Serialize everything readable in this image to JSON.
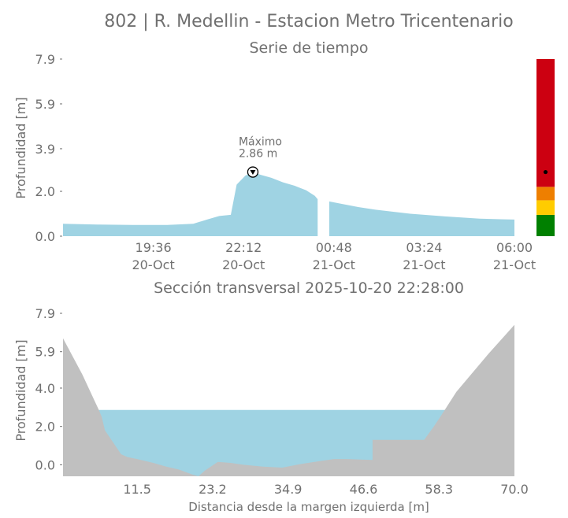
{
  "figure_title": "802 | R. Medellin - Estacion Metro Tricentenario",
  "chart_data": [
    {
      "type": "area",
      "title": "Serie de tiempo",
      "xlabel": "",
      "ylabel": "Profundidad [m]",
      "ylim": [
        0,
        7.9
      ],
      "yticks": [
        "0.0",
        "2.0",
        "3.9",
        "5.9",
        "7.9"
      ],
      "xticks": [
        {
          "time": "19:36",
          "date": "20-Oct"
        },
        {
          "time": "22:12",
          "date": "20-Oct"
        },
        {
          "time": "00:48",
          "date": "21-Oct"
        },
        {
          "time": "03:24",
          "date": "21-Oct"
        },
        {
          "time": "06:00",
          "date": "21-Oct"
        }
      ],
      "series": [
        {
          "color": "#9fd3e3",
          "points": [
            [
              "2025-10-20 17:00",
              0.55
            ],
            [
              "2025-10-20 18:00",
              0.52
            ],
            [
              "2025-10-20 19:00",
              0.5
            ],
            [
              "2025-10-20 20:00",
              0.5
            ],
            [
              "2025-10-20 20:45",
              0.55
            ],
            [
              "2025-10-20 21:10",
              0.75
            ],
            [
              "2025-10-20 21:30",
              0.9
            ],
            [
              "2025-10-20 21:50",
              0.95
            ],
            [
              "2025-10-20 22:00",
              2.3
            ],
            [
              "2025-10-20 22:15",
              2.7
            ],
            [
              "2025-10-20 22:28",
              2.86
            ],
            [
              "2025-10-20 22:40",
              2.75
            ],
            [
              "2025-10-20 23:00",
              2.6
            ],
            [
              "2025-10-20 23:20",
              2.4
            ],
            [
              "2025-10-20 23:40",
              2.25
            ],
            [
              "2025-10-21 00:00",
              2.05
            ],
            [
              "2025-10-21 00:15",
              1.8
            ],
            [
              "2025-10-21 00:20",
              1.65
            ],
            [
              "2025-10-21 00:30",
              null
            ],
            [
              "2025-10-21 00:40",
              1.55
            ],
            [
              "2025-10-21 01:00",
              1.45
            ],
            [
              "2025-10-21 01:30",
              1.3
            ],
            [
              "2025-10-21 02:00",
              1.18
            ],
            [
              "2025-10-21 03:00",
              1.0
            ],
            [
              "2025-10-21 04:00",
              0.88
            ],
            [
              "2025-10-21 05:00",
              0.78
            ],
            [
              "2025-10-21 06:00",
              0.74
            ]
          ]
        }
      ],
      "max_annotation": {
        "label": "Máximo",
        "value_text": "2.86 m",
        "time": "2025-10-20 22:28",
        "value": 2.86
      },
      "alert_bar": {
        "current_level": 2.86,
        "bands": [
          {
            "from": 0.0,
            "to": 0.95,
            "color": "#008000"
          },
          {
            "from": 0.95,
            "to": 1.6,
            "color": "#ffcc00"
          },
          {
            "from": 1.6,
            "to": 2.2,
            "color": "#ee7f00"
          },
          {
            "from": 2.2,
            "to": 7.9,
            "color": "#cc0011"
          }
        ]
      }
    },
    {
      "type": "area",
      "title": "Sección transversal 2025-10-20 22:28:00",
      "xlabel": "Distancia desde la margen izquierda [m]",
      "ylabel": "Profundidad [m]",
      "xlim": [
        0,
        70.0
      ],
      "ylim": [
        -0.6,
        7.9
      ],
      "xticks": [
        "11.5",
        "23.2",
        "34.9",
        "46.6",
        "58.3",
        "70.0"
      ],
      "yticks": [
        "0.0",
        "2.0",
        "4.0",
        "5.9",
        "7.9"
      ],
      "water_level": 2.86,
      "water_color": "#9fd3e3",
      "bed_color": "#c0c0c0",
      "bed_profile": [
        [
          0,
          6.6
        ],
        [
          3,
          4.7
        ],
        [
          5.5,
          2.9
        ],
        [
          6,
          2.5
        ],
        [
          6.5,
          1.8
        ],
        [
          7.5,
          1.3
        ],
        [
          8.5,
          0.8
        ],
        [
          9,
          0.55
        ],
        [
          10,
          0.4
        ],
        [
          11.5,
          0.3
        ],
        [
          14,
          0.1
        ],
        [
          16,
          -0.1
        ],
        [
          18,
          -0.25
        ],
        [
          20,
          -0.5
        ],
        [
          21,
          -0.6
        ],
        [
          22,
          -0.3
        ],
        [
          24,
          0.15
        ],
        [
          26,
          0.1
        ],
        [
          28,
          0.0
        ],
        [
          31,
          -0.1
        ],
        [
          34,
          -0.15
        ],
        [
          37,
          0.05
        ],
        [
          40,
          0.2
        ],
        [
          42,
          0.3
        ],
        [
          44,
          0.3
        ],
        [
          48,
          0.25
        ],
        [
          48,
          1.3
        ],
        [
          52,
          1.3
        ],
        [
          56,
          1.3
        ],
        [
          57.5,
          2.0
        ],
        [
          58.5,
          2.5
        ],
        [
          61,
          3.8
        ],
        [
          66,
          5.8
        ],
        [
          70,
          7.3
        ]
      ]
    }
  ]
}
